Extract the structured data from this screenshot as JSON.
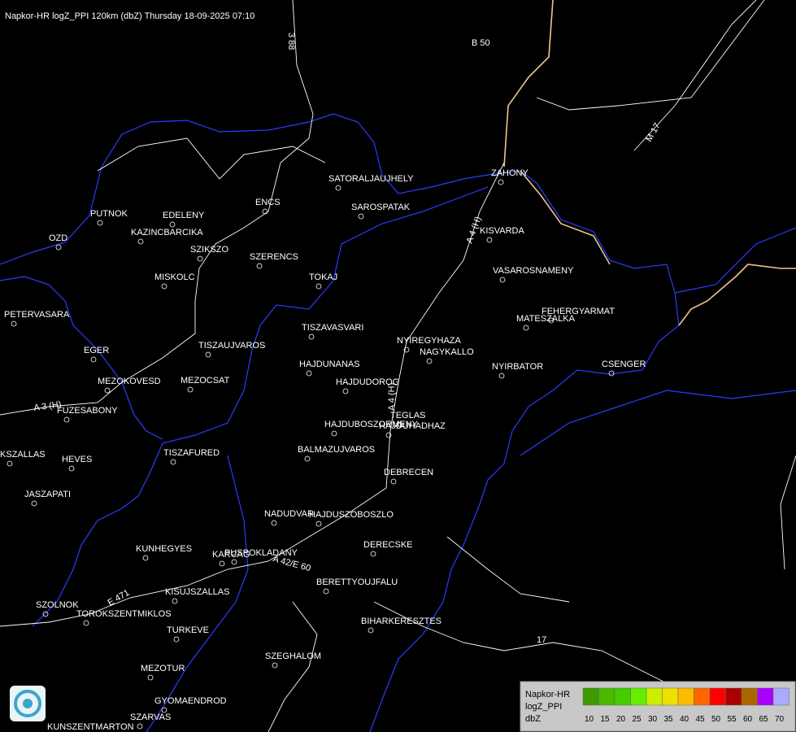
{
  "header": {
    "title": "Napkor-HR logZ_PPI 120km (dbZ) Thursday 18-09-2025 07:10"
  },
  "map": {
    "cities": [
      "SATORALJAUJHELY",
      "SAROSPATAK",
      "ZAHONY",
      "KISVARDA",
      "ENCS",
      "PUTNOK",
      "EDELENY",
      "KAZINCBARCIKA",
      "OZD",
      "SZIKSZO",
      "SZERENCS",
      "TOKAJ",
      "MISKOLC",
      "VASAROSNAMENY",
      "FEHERGYARMAT",
      "MATESZALKA",
      "PETERVASARA",
      "TISZAVASVARI",
      "NYIREGYHAZA",
      "NAGYKALLO",
      "EGER",
      "TISZAUJVAROS",
      "HAJDUNANAS",
      "NYIRBATOR",
      "CSENGER",
      "HAJDUDOROG",
      "MEZOKOVESD",
      "MEZOCSAT",
      "FUZESABONY",
      "TEGLAS",
      "HAJDUBOSZORMENY",
      "HAJDUHADHAZ",
      "TISZAFURED",
      "KSZALLAS",
      "BALMAZUJVAROS",
      "HEVES",
      "DEBRECEN",
      "JASZAPATI",
      "NADUDVAR",
      "HAJDUSZOBOSZLO",
      "DERECSKE",
      "KUNHEGYES",
      "KARCAG",
      "PUSPOKLADANY",
      "BERETTYOUJFALU",
      "KISUJSZALLAS",
      "SZOLNOK",
      "TOROKSZENTMIKLOS",
      "BIHARKERESZTES",
      "TURKEVE",
      "SZEGHALOM",
      "MEZOTUR",
      "GYOMAENDROD",
      "SZARVAS",
      "KUNSZENTMARTON"
    ],
    "roads": [
      "3 88",
      "B 50",
      "M 17",
      "A 3 (H)",
      "A 4 (H)",
      "A 4 (H)",
      "A 42/E 60",
      "E 471",
      "17"
    ]
  },
  "legend": {
    "title": [
      "Napkor-HR",
      "logZ_PPI",
      "dbZ"
    ],
    "values": [
      10,
      15,
      20,
      25,
      30,
      35,
      40,
      45,
      50,
      55,
      60,
      65,
      70
    ],
    "colors": [
      "#3d9900",
      "#4cb800",
      "#44cc00",
      "#66ee00",
      "#ccee00",
      "#f0e000",
      "#ffbb00",
      "#ff6600",
      "#ff0000",
      "#aa0000",
      "#aa6600",
      "#aa00ff",
      "#aaaaff"
    ]
  }
}
